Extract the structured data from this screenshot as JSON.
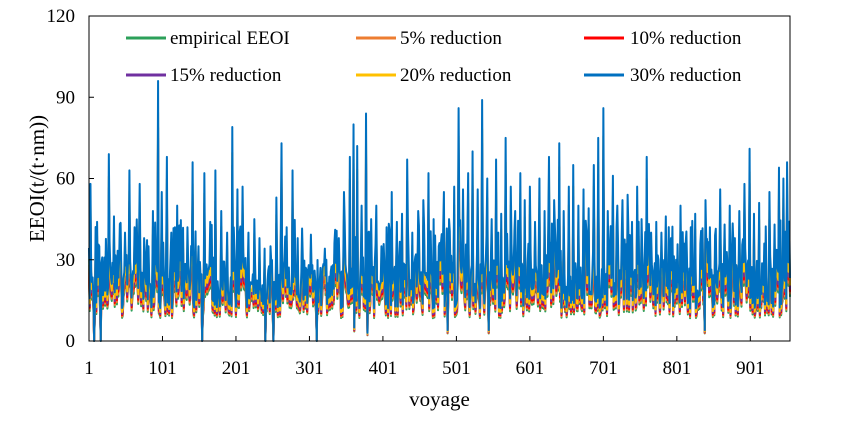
{
  "chart_data": {
    "type": "line",
    "xlabel": "voyage",
    "ylabel": "EEOI(t/(t·nm))",
    "xlim": [
      1,
      955
    ],
    "ylim": [
      0,
      120
    ],
    "x_ticks": [
      "1",
      "101",
      "201",
      "301",
      "401",
      "501",
      "601",
      "701",
      "801",
      "901"
    ],
    "x_tick_values": [
      1,
      101,
      201,
      301,
      401,
      501,
      601,
      701,
      801,
      901
    ],
    "y_ticks": [
      "0",
      "30",
      "60",
      "90",
      "120"
    ],
    "y_tick_values": [
      0,
      30,
      60,
      90,
      120
    ],
    "grid": false,
    "legend_position": "top",
    "series": [
      {
        "name": "empirical EEOI",
        "color": "#2ca05a",
        "scale": 0.7
      },
      {
        "name": "5% reduction",
        "color": "#ed7d31",
        "scale": 0.74
      },
      {
        "name": "10% reduction",
        "color": "#ff0000",
        "scale": 0.78
      },
      {
        "name": "15% reduction",
        "color": "#7030a0",
        "scale": 0.82
      },
      {
        "name": "20% reduction",
        "color": "#ffc000",
        "scale": 0.88
      },
      {
        "name": "30% reduction",
        "color": "#0070c0",
        "scale": 1.0
      }
    ],
    "peaks_30pct": [
      [
        3,
        58
      ],
      [
        12,
        44
      ],
      [
        25,
        28
      ],
      [
        28,
        69
      ],
      [
        35,
        46
      ],
      [
        42,
        30
      ],
      [
        50,
        40
      ],
      [
        56,
        63
      ],
      [
        63,
        42
      ],
      [
        70,
        58
      ],
      [
        76,
        38
      ],
      [
        82,
        35
      ],
      [
        88,
        48
      ],
      [
        95,
        96
      ],
      [
        100,
        55
      ],
      [
        107,
        68
      ],
      [
        113,
        40
      ],
      [
        121,
        50
      ],
      [
        128,
        35
      ],
      [
        135,
        42
      ],
      [
        142,
        66
      ],
      [
        150,
        35
      ],
      [
        158,
        62
      ],
      [
        166,
        44
      ],
      [
        173,
        63
      ],
      [
        181,
        48
      ],
      [
        189,
        40
      ],
      [
        196,
        79
      ],
      [
        203,
        56
      ],
      [
        210,
        57
      ],
      [
        218,
        40
      ],
      [
        226,
        45
      ],
      [
        233,
        38
      ],
      [
        241,
        48
      ],
      [
        248,
        35
      ],
      [
        256,
        53
      ],
      [
        263,
        73
      ],
      [
        270,
        42
      ],
      [
        278,
        63
      ],
      [
        285,
        38
      ],
      [
        292,
        30
      ],
      [
        300,
        28
      ],
      [
        308,
        26
      ],
      [
        316,
        27
      ],
      [
        324,
        30
      ],
      [
        333,
        28
      ],
      [
        341,
        38
      ],
      [
        348,
        55
      ],
      [
        356,
        68
      ],
      [
        361,
        80
      ],
      [
        366,
        72
      ],
      [
        372,
        50
      ],
      [
        378,
        84
      ],
      [
        385,
        45
      ],
      [
        392,
        50
      ],
      [
        399,
        35
      ],
      [
        406,
        42
      ],
      [
        413,
        55
      ],
      [
        420,
        44
      ],
      [
        427,
        47
      ],
      [
        434,
        67
      ],
      [
        441,
        40
      ],
      [
        449,
        48
      ],
      [
        456,
        52
      ],
      [
        463,
        62
      ],
      [
        470,
        45
      ],
      [
        477,
        35
      ],
      [
        484,
        55
      ],
      [
        491,
        45
      ],
      [
        498,
        57
      ],
      [
        504,
        86
      ],
      [
        510,
        56
      ],
      [
        517,
        62
      ],
      [
        523,
        70
      ],
      [
        530,
        56
      ],
      [
        536,
        89
      ],
      [
        543,
        60
      ],
      [
        549,
        45
      ],
      [
        555,
        67
      ],
      [
        562,
        47
      ],
      [
        568,
        75
      ],
      [
        575,
        57
      ],
      [
        581,
        48
      ],
      [
        588,
        62
      ],
      [
        594,
        52
      ],
      [
        601,
        57
      ],
      [
        608,
        44
      ],
      [
        614,
        60
      ],
      [
        621,
        48
      ],
      [
        627,
        68
      ],
      [
        634,
        52
      ],
      [
        641,
        73
      ],
      [
        647,
        48
      ],
      [
        654,
        57
      ],
      [
        660,
        65
      ],
      [
        667,
        50
      ],
      [
        674,
        56
      ],
      [
        681,
        49
      ],
      [
        688,
        65
      ],
      [
        694,
        75
      ],
      [
        701,
        86
      ],
      [
        707,
        48
      ],
      [
        714,
        61
      ],
      [
        720,
        50
      ],
      [
        727,
        52
      ],
      [
        734,
        54
      ],
      [
        740,
        44
      ],
      [
        747,
        57
      ],
      [
        753,
        45
      ],
      [
        760,
        68
      ],
      [
        766,
        40
      ],
      [
        773,
        44
      ],
      [
        780,
        40
      ],
      [
        786,
        46
      ],
      [
        793,
        38
      ],
      [
        800,
        30
      ],
      [
        806,
        50
      ],
      [
        813,
        36
      ],
      [
        820,
        42
      ],
      [
        826,
        47
      ],
      [
        833,
        36
      ],
      [
        840,
        52
      ],
      [
        846,
        42
      ],
      [
        853,
        39
      ],
      [
        860,
        56
      ],
      [
        866,
        43
      ],
      [
        873,
        50
      ],
      [
        880,
        38
      ],
      [
        886,
        48
      ],
      [
        893,
        58
      ],
      [
        900,
        71
      ],
      [
        906,
        47
      ],
      [
        913,
        51
      ],
      [
        920,
        36
      ],
      [
        927,
        55
      ],
      [
        934,
        43
      ],
      [
        940,
        64
      ],
      [
        946,
        60
      ],
      [
        951,
        66
      ]
    ],
    "dips_30pct": [
      [
        8,
        0
      ],
      [
        17,
        0
      ],
      [
        155,
        0
      ],
      [
        241,
        0
      ],
      [
        252,
        0
      ],
      [
        311,
        0
      ],
      [
        362,
        5
      ],
      [
        380,
        3
      ],
      [
        489,
        4
      ],
      [
        545,
        4
      ],
      [
        839,
        4
      ]
    ],
    "baseline_30pct_range": [
      12,
      30
    ]
  }
}
